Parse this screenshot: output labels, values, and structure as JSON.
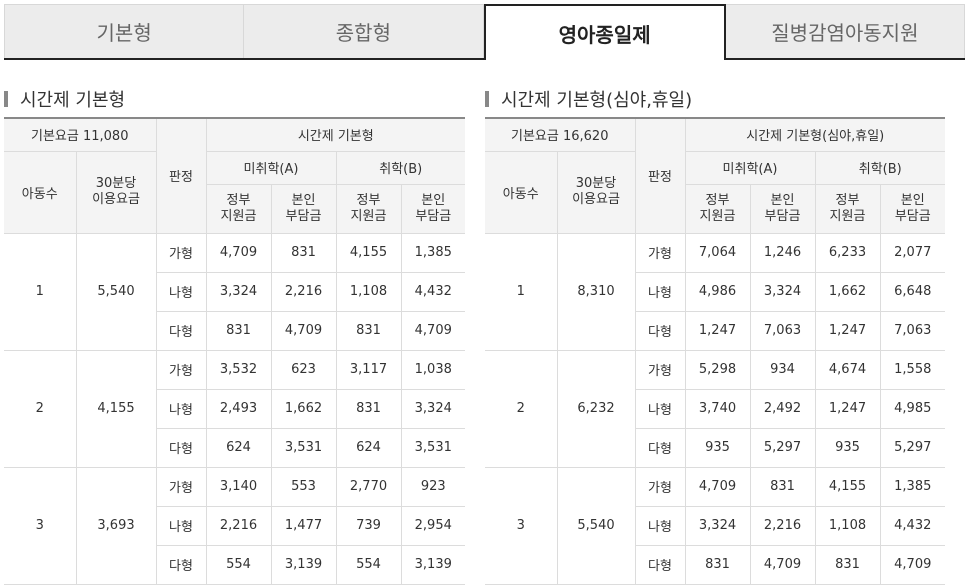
{
  "tabs": [
    {
      "label": "기본형",
      "active": false
    },
    {
      "label": "종합형",
      "active": false
    },
    {
      "label": "영아종일제",
      "active": true
    },
    {
      "label": "질병감염아동지원",
      "active": false
    }
  ],
  "tables": [
    {
      "title": "시간제 기본형",
      "base_fee": "기본요금 11,080",
      "col_children": "아동수",
      "col_half_hour": "30분당\n이용요금",
      "col_judge": "판정",
      "group_header": "시간제 기본형",
      "col_a": "미취학(A)",
      "col_b": "취학(B)",
      "col_gov": "정부\n지원금",
      "col_self": "본인\n부담금",
      "groups": [
        {
          "children": "1",
          "fee": "5,540",
          "rows": [
            {
              "grade": "가형",
              "a_gov": "4,709",
              "a_self": "831",
              "b_gov": "4,155",
              "b_self": "1,385"
            },
            {
              "grade": "나형",
              "a_gov": "3,324",
              "a_self": "2,216",
              "b_gov": "1,108",
              "b_self": "4,432"
            },
            {
              "grade": "다형",
              "a_gov": "831",
              "a_self": "4,709",
              "b_gov": "831",
              "b_self": "4,709"
            }
          ]
        },
        {
          "children": "2",
          "fee": "4,155",
          "rows": [
            {
              "grade": "가형",
              "a_gov": "3,532",
              "a_self": "623",
              "b_gov": "3,117",
              "b_self": "1,038"
            },
            {
              "grade": "나형",
              "a_gov": "2,493",
              "a_self": "1,662",
              "b_gov": "831",
              "b_self": "3,324"
            },
            {
              "grade": "다형",
              "a_gov": "624",
              "a_self": "3,531",
              "b_gov": "624",
              "b_self": "3,531"
            }
          ]
        },
        {
          "children": "3",
          "fee": "3,693",
          "rows": [
            {
              "grade": "가형",
              "a_gov": "3,140",
              "a_self": "553",
              "b_gov": "2,770",
              "b_self": "923"
            },
            {
              "grade": "나형",
              "a_gov": "2,216",
              "a_self": "1,477",
              "b_gov": "739",
              "b_self": "2,954"
            },
            {
              "grade": "다형",
              "a_gov": "554",
              "a_self": "3,139",
              "b_gov": "554",
              "b_self": "3,139"
            }
          ]
        }
      ]
    },
    {
      "title": "시간제 기본형(심야,휴일)",
      "base_fee": "기본요금 16,620",
      "col_children": "아동수",
      "col_half_hour": "30분당\n이용요금",
      "col_judge": "판정",
      "group_header": "시간제 기본형(심야,휴일)",
      "col_a": "미취학(A)",
      "col_b": "취학(B)",
      "col_gov": "정부\n지원금",
      "col_self": "본인\n부담금",
      "groups": [
        {
          "children": "1",
          "fee": "8,310",
          "rows": [
            {
              "grade": "가형",
              "a_gov": "7,064",
              "a_self": "1,246",
              "b_gov": "6,233",
              "b_self": "2,077"
            },
            {
              "grade": "나형",
              "a_gov": "4,986",
              "a_self": "3,324",
              "b_gov": "1,662",
              "b_self": "6,648"
            },
            {
              "grade": "다형",
              "a_gov": "1,247",
              "a_self": "7,063",
              "b_gov": "1,247",
              "b_self": "7,063"
            }
          ]
        },
        {
          "children": "2",
          "fee": "6,232",
          "rows": [
            {
              "grade": "가형",
              "a_gov": "5,298",
              "a_self": "934",
              "b_gov": "4,674",
              "b_self": "1,558"
            },
            {
              "grade": "나형",
              "a_gov": "3,740",
              "a_self": "2,492",
              "b_gov": "1,247",
              "b_self": "4,985"
            },
            {
              "grade": "다형",
              "a_gov": "935",
              "a_self": "5,297",
              "b_gov": "935",
              "b_self": "5,297"
            }
          ]
        },
        {
          "children": "3",
          "fee": "5,540",
          "rows": [
            {
              "grade": "가형",
              "a_gov": "4,709",
              "a_self": "831",
              "b_gov": "4,155",
              "b_self": "1,385"
            },
            {
              "grade": "나형",
              "a_gov": "3,324",
              "a_self": "2,216",
              "b_gov": "1,108",
              "b_self": "4,432"
            },
            {
              "grade": "다형",
              "a_gov": "831",
              "a_self": "4,709",
              "b_gov": "831",
              "b_self": "4,709"
            }
          ]
        }
      ]
    }
  ]
}
